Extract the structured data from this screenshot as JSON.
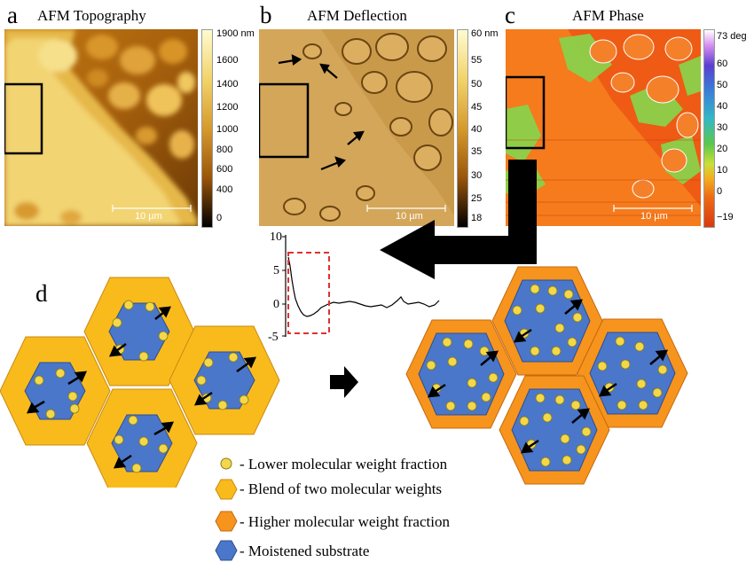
{
  "panels": {
    "a": {
      "letter": "a",
      "title": "AFM Topography",
      "ticks": [
        "1900 nm",
        "1600",
        "1400",
        "1200",
        "1000",
        "800",
        "600",
        "400",
        "0"
      ],
      "scale": "10 µm"
    },
    "b": {
      "letter": "b",
      "title": "AFM Deflection",
      "ticks": [
        "60 nm",
        "55",
        "50",
        "45",
        "40",
        "35",
        "30",
        "25",
        "18"
      ],
      "scale": "10 µm"
    },
    "c": {
      "letter": "c",
      "title": "AFM Phase",
      "ticks": [
        "73 deg",
        "60",
        "50",
        "40",
        "30",
        "20",
        "10",
        "0",
        "−19"
      ],
      "scale": "10 µm"
    },
    "d": {
      "letter": "d"
    }
  },
  "profile_plot": {
    "y_ticks": [
      "10",
      "5",
      "0",
      "-5"
    ]
  },
  "legend": [
    {
      "icon": "small-circle",
      "color": "#f2d84a",
      "label": "- Lower molecular weight fraction"
    },
    {
      "icon": "hexagon",
      "color": "#f9bb1c",
      "label": "- Blend of two molecular weights"
    },
    {
      "icon": "hexagon",
      "color": "#f7941d",
      "label": "- Higher molecular weight fraction"
    },
    {
      "icon": "hexagon",
      "color": "#4a77c9",
      "label": "- Moistened substrate"
    }
  ],
  "colors": {
    "blend": "#f9bb1c",
    "higher": "#f7941d",
    "substrate": "#4a77c9",
    "lower": "#f2d84a",
    "dashed_box": "#e03131"
  }
}
